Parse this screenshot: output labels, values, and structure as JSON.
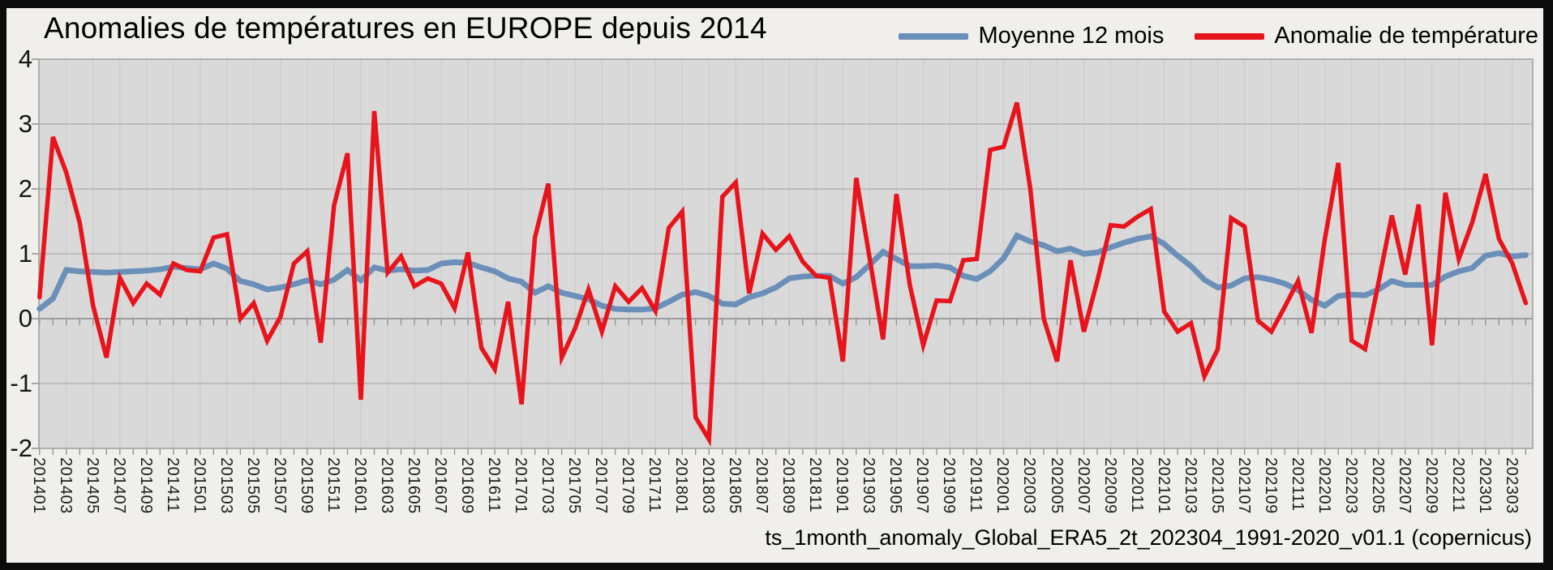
{
  "header": {
    "title": "Anomalies de températures en EUROPE depuis 2014"
  },
  "legend": {
    "items": [
      {
        "label": "Moyenne 12 mois",
        "color": "#6a90ba"
      },
      {
        "label": "Anomalie de température",
        "color": "#e8141c"
      }
    ]
  },
  "source_note": "ts_1month_anomaly_Global_ERA5_2t_202304_1991-2020_v01.1 (copernicus)",
  "chart_data": {
    "type": "line",
    "title": "Anomalies de températures en EUROPE depuis 2014",
    "xlabel": "",
    "ylabel": "",
    "ylim": [
      -2,
      4
    ],
    "yticks": [
      4,
      3,
      2,
      1,
      0,
      -1,
      -2
    ],
    "ytick_labels": [
      "4",
      "3",
      "2",
      "1",
      "0",
      "-1",
      "-2"
    ],
    "grid": true,
    "plot_bg": "#d9d9d9",
    "legend_position": "top-right",
    "x_label_step": 2,
    "x": [
      "201401",
      "201402",
      "201403",
      "201404",
      "201405",
      "201406",
      "201407",
      "201408",
      "201409",
      "201410",
      "201411",
      "201412",
      "201501",
      "201502",
      "201503",
      "201504",
      "201505",
      "201506",
      "201507",
      "201508",
      "201509",
      "201510",
      "201511",
      "201512",
      "201601",
      "201602",
      "201603",
      "201604",
      "201605",
      "201606",
      "201607",
      "201608",
      "201609",
      "201610",
      "201611",
      "201612",
      "201701",
      "201702",
      "201703",
      "201704",
      "201705",
      "201706",
      "201707",
      "201708",
      "201709",
      "201710",
      "201711",
      "201712",
      "201801",
      "201802",
      "201803",
      "201804",
      "201805",
      "201806",
      "201807",
      "201808",
      "201809",
      "201810",
      "201811",
      "201812",
      "201901",
      "201902",
      "201903",
      "201904",
      "201905",
      "201906",
      "201907",
      "201908",
      "201909",
      "201910",
      "201911",
      "201912",
      "202001",
      "202002",
      "202003",
      "202004",
      "202005",
      "202006",
      "202007",
      "202008",
      "202009",
      "202010",
      "202011",
      "202012",
      "202101",
      "202102",
      "202103",
      "202104",
      "202105",
      "202106",
      "202107",
      "202108",
      "202109",
      "202110",
      "202111",
      "202112",
      "202201",
      "202202",
      "202203",
      "202204",
      "202205",
      "202206",
      "202207",
      "202208",
      "202209",
      "202210",
      "202211",
      "202212",
      "202301",
      "202302",
      "202303",
      "202304"
    ],
    "series": [
      {
        "name": "Moyenne 12 mois",
        "color": "#6a90ba",
        "stroke_width": 7,
        "values": [
          0.15,
          0.31,
          0.75,
          0.73,
          0.72,
          0.71,
          0.72,
          0.73,
          0.74,
          0.76,
          0.8,
          0.78,
          0.76,
          0.85,
          0.77,
          0.58,
          0.53,
          0.45,
          0.48,
          0.53,
          0.59,
          0.53,
          0.6,
          0.75,
          0.59,
          0.79,
          0.74,
          0.76,
          0.74,
          0.75,
          0.85,
          0.87,
          0.86,
          0.79,
          0.73,
          0.62,
          0.57,
          0.4,
          0.5,
          0.4,
          0.35,
          0.3,
          0.2,
          0.15,
          0.14,
          0.14,
          0.16,
          0.26,
          0.37,
          0.41,
          0.35,
          0.23,
          0.22,
          0.33,
          0.39,
          0.48,
          0.62,
          0.65,
          0.66,
          0.66,
          0.54,
          0.64,
          0.83,
          1.03,
          0.92,
          0.81,
          0.81,
          0.82,
          0.79,
          0.66,
          0.61,
          0.73,
          0.93,
          1.28,
          1.19,
          1.13,
          1.04,
          1.08,
          1.0,
          1.02,
          1.1,
          1.17,
          1.23,
          1.27,
          1.15,
          0.97,
          0.81,
          0.6,
          0.48,
          0.51,
          0.62,
          0.64,
          0.6,
          0.54,
          0.44,
          0.29,
          0.2,
          0.35,
          0.37,
          0.36,
          0.45,
          0.58,
          0.52,
          0.52,
          0.52,
          0.65,
          0.73,
          0.78,
          0.97,
          1.01,
          0.96,
          0.98
        ]
      },
      {
        "name": "Anomalie de température",
        "color": "#e8141c",
        "stroke_width": 5.5,
        "values": [
          0.33,
          2.8,
          2.25,
          1.48,
          0.2,
          -0.6,
          0.63,
          0.24,
          0.54,
          0.37,
          0.85,
          0.75,
          0.73,
          1.25,
          1.3,
          0.0,
          0.24,
          -0.34,
          0.03,
          0.85,
          1.04,
          -0.37,
          1.75,
          2.55,
          -1.25,
          3.2,
          0.71,
          0.96,
          0.5,
          0.62,
          0.54,
          0.16,
          1.02,
          -0.45,
          -0.78,
          0.26,
          -1.32,
          1.25,
          2.08,
          -0.6,
          -0.15,
          0.45,
          -0.2,
          0.5,
          0.26,
          0.47,
          0.12,
          1.4,
          1.65,
          -1.52,
          -1.86,
          1.88,
          2.1,
          0.39,
          1.31,
          1.06,
          1.27,
          0.88,
          0.66,
          0.63,
          -0.66,
          2.17,
          0.93,
          -0.32,
          1.92,
          0.52,
          -0.41,
          0.28,
          0.27,
          0.9,
          0.92,
          2.6,
          2.65,
          3.33,
          2.0,
          0.0,
          -0.66,
          0.9,
          -0.2,
          0.58,
          1.44,
          1.42,
          1.57,
          1.69,
          0.11,
          -0.2,
          -0.07,
          -0.89,
          -0.47,
          1.55,
          1.42,
          -0.03,
          -0.2,
          0.18,
          0.58,
          -0.22,
          1.23,
          2.4,
          -0.34,
          -0.47,
          0.55,
          1.59,
          0.68,
          1.76,
          -0.41,
          1.94,
          0.92,
          1.48,
          2.23,
          1.23,
          0.85,
          0.24
        ]
      }
    ]
  }
}
